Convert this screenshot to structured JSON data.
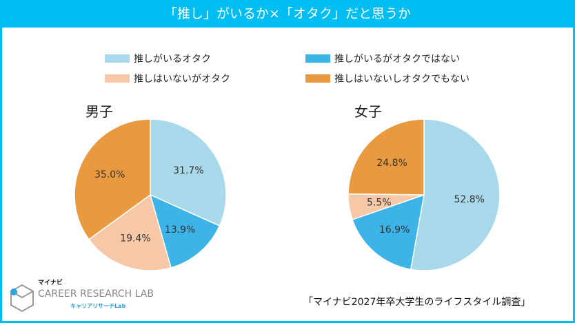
{
  "title": "「推し」がいるか×「オタク」だと思うか",
  "legend": [
    {
      "label": "推しがいるオタク",
      "color": "#a8d8ea"
    },
    {
      "label": "推しがいるがオタクではない",
      "color": "#3db4e8"
    },
    {
      "label": "推しはいないがオタク",
      "color": "#f7c8a8"
    },
    {
      "label": "推しはいないしオタクでもない",
      "color": "#ea9a3e"
    }
  ],
  "chart_data": [
    {
      "type": "pie",
      "title": "男子",
      "categories": [
        "推しがいるオタク",
        "推しがいるがオタクではない",
        "推しはいないがオタク",
        "推しはいないしオタクでもない"
      ],
      "values": [
        31.7,
        13.9,
        19.4,
        35.0
      ],
      "labels": [
        "31.7%",
        "13.9%",
        "19.4%",
        "35.0%"
      ]
    },
    {
      "type": "pie",
      "title": "女子",
      "categories": [
        "推しがいるオタク",
        "推しがいるがオタクではない",
        "推しはいないがオタク",
        "推しはいないしオタクでもない"
      ],
      "values": [
        52.8,
        16.9,
        5.5,
        24.8
      ],
      "labels": [
        "52.8%",
        "16.9%",
        "5.5%",
        "24.8%"
      ]
    }
  ],
  "source": "「マイナビ2027年卒大学生のライフスタイル調査」",
  "logo": {
    "brand": "マイナビ",
    "name": "CAREER RESEARCH LAB",
    "sub": "キャリアリサーチLab"
  }
}
